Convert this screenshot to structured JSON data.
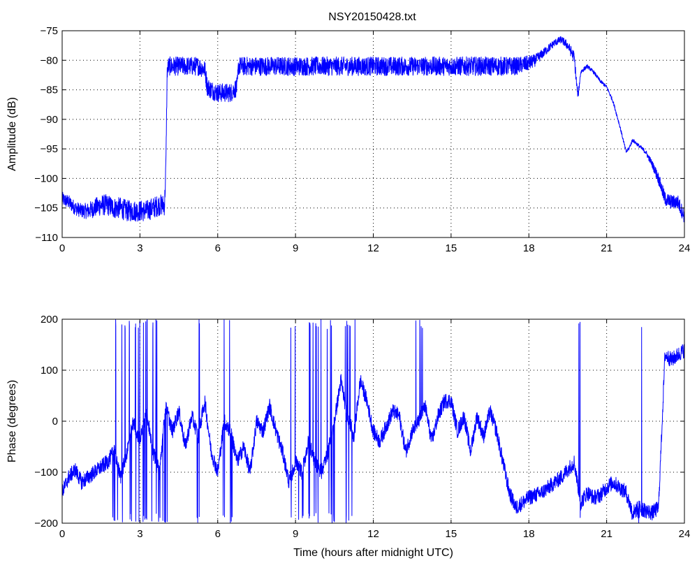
{
  "figure": {
    "title": "NSY20150428.txt",
    "line_color": "#0000ff"
  },
  "chart_data": [
    {
      "type": "line",
      "title": "NSY20150428.txt",
      "xlabel": "",
      "ylabel": "Amplitude (dB)",
      "xlim": [
        0,
        24
      ],
      "ylim": [
        -110,
        -75
      ],
      "xticks": [
        0,
        3,
        6,
        9,
        12,
        15,
        18,
        21,
        24
      ],
      "yticks": [
        -110,
        -105,
        -100,
        -95,
        -90,
        -85,
        -80,
        -75
      ],
      "grid": true,
      "series": [
        {
          "color": "#0000ff",
          "x": [
            0,
            0.25,
            0.5,
            0.75,
            1.0,
            1.25,
            1.5,
            1.75,
            2.0,
            2.25,
            2.5,
            2.75,
            3.0,
            3.25,
            3.5,
            3.75,
            3.95,
            4.0,
            4.05,
            4.1,
            4.25,
            4.5,
            4.75,
            5.0,
            5.25,
            5.5,
            5.6,
            5.75,
            6.0,
            6.25,
            6.5,
            6.75,
            6.8,
            7.0,
            7.5,
            8.0,
            8.5,
            9.0,
            9.5,
            10.0,
            10.5,
            11.0,
            11.5,
            12.0,
            12.5,
            13.0,
            13.5,
            14.0,
            14.5,
            15.0,
            15.5,
            16.0,
            16.5,
            17.0,
            17.5,
            18.0,
            18.25,
            18.5,
            18.75,
            19.0,
            19.25,
            19.5,
            19.75,
            19.85,
            19.9,
            20.0,
            20.25,
            20.5,
            20.75,
            21.0,
            21.25,
            21.5,
            21.75,
            21.85,
            22.0,
            22.25,
            22.5,
            22.75,
            23.0,
            23.25,
            23.5,
            23.75,
            24.0
          ],
          "y": [
            -103.5,
            -104,
            -105,
            -105.5,
            -105.5,
            -105,
            -104.5,
            -104.5,
            -105,
            -105,
            -105.5,
            -105.5,
            -105.5,
            -105.5,
            -105,
            -104.5,
            -104.5,
            -98,
            -82,
            -81,
            -81,
            -81,
            -81,
            -81,
            -81,
            -81.5,
            -84.5,
            -85,
            -85.5,
            -85.5,
            -85.5,
            -84.5,
            -81,
            -81,
            -81,
            -81,
            -81,
            -81,
            -81,
            -81,
            -81,
            -81,
            -81,
            -81,
            -81,
            -81,
            -81,
            -81,
            -81,
            -81,
            -81,
            -81,
            -81,
            -81,
            -81,
            -80.5,
            -80,
            -79,
            -78,
            -77,
            -76.5,
            -77.5,
            -79.5,
            -84.5,
            -86,
            -82,
            -81,
            -82,
            -83.5,
            -84.5,
            -87,
            -91,
            -95.5,
            -95,
            -93.5,
            -94.5,
            -95.5,
            -97.5,
            -100,
            -103.5,
            -104,
            -104,
            -106.5
          ],
          "noise_db": [
            1.2,
            1.2,
            1.2,
            1.2,
            1.4,
            1.6,
            1.8,
            1.8,
            1.8,
            1.8,
            1.8,
            1.8,
            1.8,
            1.8,
            1.8,
            1.8,
            1.8,
            1.5,
            1.3,
            1.6,
            1.6,
            1.6,
            1.6,
            1.6,
            1.6,
            1.6,
            1.6,
            1.6,
            1.6,
            1.6,
            1.6,
            1.6,
            1.6,
            1.6,
            1.6,
            1.6,
            1.6,
            1.6,
            1.6,
            1.6,
            1.6,
            1.6,
            1.6,
            1.6,
            1.6,
            1.6,
            1.6,
            1.6,
            1.6,
            1.6,
            1.6,
            1.6,
            1.6,
            1.6,
            1.5,
            1.3,
            1.0,
            0.8,
            0.7,
            0.6,
            0.6,
            0.8,
            1.0,
            1.0,
            0.6,
            0.4,
            0.3,
            0.3,
            0.3,
            0.3,
            0.3,
            0.3,
            0.3,
            0.3,
            0.3,
            0.3,
            0.4,
            0.6,
            1.0,
            1.2,
            1.2,
            1.2,
            1.2
          ]
        }
      ]
    },
    {
      "type": "line",
      "title": "",
      "xlabel": "Time (hours after midnight UTC)",
      "ylabel": "Phase (degrees)",
      "xlim": [
        0,
        24
      ],
      "ylim": [
        -200,
        200
      ],
      "xticks": [
        0,
        3,
        6,
        9,
        12,
        15,
        18,
        21,
        24
      ],
      "yticks": [
        -200,
        -100,
        0,
        100,
        200
      ],
      "grid": true,
      "series": [
        {
          "color": "#0000ff",
          "x": [
            0,
            0.25,
            0.5,
            0.75,
            1.0,
            1.25,
            1.5,
            1.75,
            2.0,
            2.25,
            2.5,
            2.75,
            3.0,
            3.25,
            3.5,
            3.75,
            4.0,
            4.25,
            4.5,
            4.75,
            5.0,
            5.25,
            5.5,
            5.75,
            6.0,
            6.25,
            6.5,
            6.75,
            7.0,
            7.25,
            7.5,
            7.75,
            8.0,
            8.25,
            8.5,
            8.75,
            9.0,
            9.25,
            9.5,
            9.75,
            10.0,
            10.25,
            10.5,
            10.75,
            11.0,
            11.25,
            11.5,
            11.75,
            12.0,
            12.25,
            12.5,
            12.75,
            13.0,
            13.25,
            13.5,
            13.75,
            14.0,
            14.25,
            14.5,
            14.75,
            15.0,
            15.25,
            15.5,
            15.75,
            16.0,
            16.25,
            16.5,
            16.75,
            17.0,
            17.25,
            17.5,
            17.75,
            18.0,
            18.25,
            18.5,
            18.75,
            19.0,
            19.25,
            19.5,
            19.75,
            20.0,
            20.25,
            20.5,
            20.75,
            21.0,
            21.25,
            21.5,
            21.75,
            22.0,
            22.25,
            22.5,
            22.75,
            23.0,
            23.25,
            23.5,
            23.75,
            24.0
          ],
          "y": [
            -140,
            -110,
            -95,
            -120,
            -110,
            -100,
            -90,
            -80,
            -60,
            -110,
            -60,
            0,
            -40,
            20,
            -60,
            -100,
            30,
            -20,
            20,
            -50,
            10,
            -30,
            40,
            -60,
            -100,
            0,
            -20,
            -80,
            -50,
            -100,
            0,
            -20,
            30,
            -20,
            -60,
            -120,
            -80,
            -100,
            -40,
            -80,
            -100,
            -60,
            0,
            80,
            10,
            -30,
            80,
            40,
            -20,
            -40,
            -10,
            20,
            10,
            -60,
            -20,
            0,
            30,
            -40,
            10,
            40,
            40,
            -20,
            10,
            -60,
            10,
            -30,
            20,
            -20,
            -80,
            -140,
            -170,
            -160,
            -150,
            -145,
            -140,
            -130,
            -120,
            -110,
            -95,
            -80,
            -160,
            -140,
            -150,
            -145,
            -130,
            -120,
            -130,
            -140,
            -180,
            -170,
            -175,
            -180,
            -170,
            130,
            120,
            130,
            140
          ],
          "noise_deg": 15,
          "wraps": [
            [
              1.95,
              2.15
            ],
            [
              2.3,
              2.7
            ],
            [
              2.8,
              3.0
            ],
            [
              3.1,
              3.3
            ],
            [
              3.4,
              3.8
            ],
            [
              3.85,
              4.05
            ],
            [
              5.2,
              5.3
            ],
            [
              6.2,
              6.6
            ],
            [
              8.8,
              9.0
            ],
            [
              9.1,
              9.3
            ],
            [
              9.5,
              10.0
            ],
            [
              10.2,
              10.5
            ],
            [
              10.9,
              11.3
            ],
            [
              13.6,
              13.9
            ],
            [
              19.9,
              20.0
            ],
            [
              21.9,
              22.1
            ],
            [
              22.2,
              22.4
            ]
          ]
        }
      ]
    }
  ]
}
